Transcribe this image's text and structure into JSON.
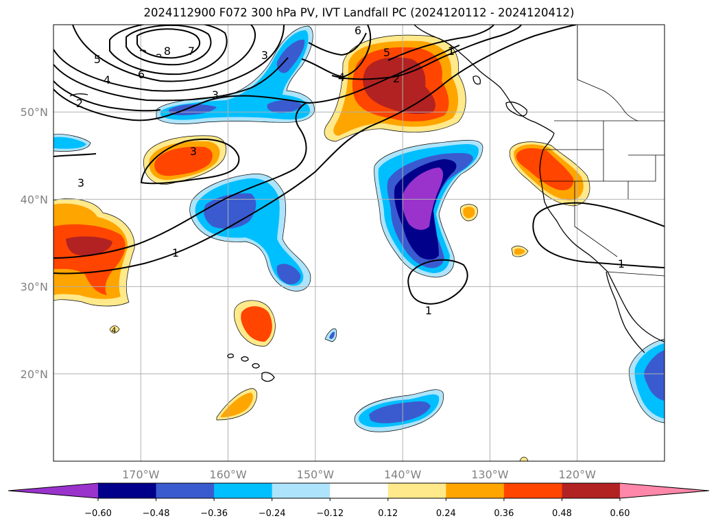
{
  "title": "2024112900 F072 300 hPa PV, IVT Landfall PC (2024120112 - 2024120412)",
  "map": {
    "projection": "PlateCarree",
    "extent_lon": [
      -180,
      -110
    ],
    "extent_lat": [
      10,
      60
    ],
    "lon_ticks": [
      {
        "lon": -170,
        "label": "170°W"
      },
      {
        "lon": -160,
        "label": "160°W"
      },
      {
        "lon": -150,
        "label": "150°W"
      },
      {
        "lon": -140,
        "label": "140°W"
      },
      {
        "lon": -130,
        "label": "130°W"
      },
      {
        "lon": -120,
        "label": "120°W"
      }
    ],
    "lat_ticks": [
      {
        "lat": 20,
        "label": "20°N"
      },
      {
        "lat": 30,
        "label": "30°N"
      },
      {
        "lat": 40,
        "label": "40°N"
      },
      {
        "lat": 50,
        "label": "50°N"
      }
    ],
    "grid": true,
    "tick_color": "#808080"
  },
  "colorbar": {
    "levels": [
      "−0.60",
      "−0.48",
      "−0.36",
      "−0.24",
      "−0.12",
      "0.12",
      "0.24",
      "0.36",
      "0.48",
      "0.60"
    ],
    "colors": [
      "#9933cc",
      "#00008b",
      "#3a5bcf",
      "#00bfff",
      "#aee4fb",
      "#ffffff",
      "#ffe98a",
      "#ffa500",
      "#ff4500",
      "#b22222",
      "#ff88aa"
    ],
    "extend": "both"
  },
  "pv_contour_labels": [
    "8",
    "7",
    "6",
    "5",
    "4",
    "3",
    "2",
    "1",
    "6",
    "5",
    "4",
    "3",
    "2",
    "3",
    "3",
    "1",
    "1",
    "1",
    "4"
  ]
}
